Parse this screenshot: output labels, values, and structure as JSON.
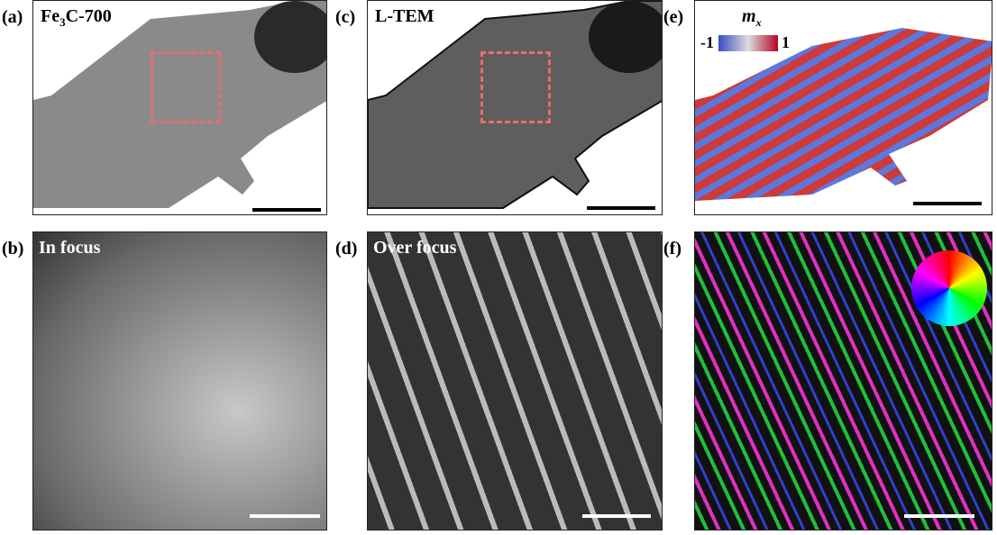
{
  "panels": {
    "a": {
      "label": "(a)",
      "title_main": "Fe",
      "title_sub": "3",
      "title_rest": "C-700"
    },
    "b": {
      "label": "(b)",
      "title": "In focus"
    },
    "c": {
      "label": "(c)",
      "title": "L-TEM"
    },
    "d": {
      "label": "(d)",
      "title": "Over focus"
    },
    "e": {
      "label": "(e)",
      "colorbar_title": "m",
      "colorbar_sub": "x",
      "colorbar_min": "-1",
      "colorbar_max": "1"
    },
    "f": {
      "label": "(f)"
    }
  },
  "colors": {
    "roi": "#f06a6a",
    "colormap_low": "#3b4cc0",
    "colormap_high": "#b40426"
  }
}
